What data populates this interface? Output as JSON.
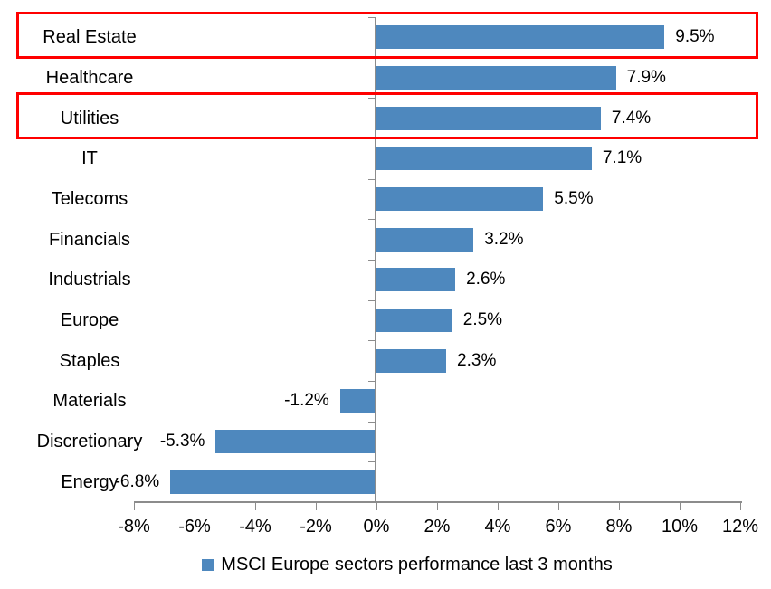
{
  "chart_data": {
    "type": "bar",
    "orientation": "horizontal",
    "title": "",
    "categories": [
      "Real Estate",
      "Healthcare",
      "Utilities",
      "IT",
      "Telecoms",
      "Financials",
      "Industrials",
      "Europe",
      "Staples",
      "Materials",
      "Discretionary",
      "Energy"
    ],
    "values": [
      9.5,
      7.9,
      7.4,
      7.1,
      5.5,
      3.2,
      2.6,
      2.5,
      2.3,
      -1.2,
      -5.3,
      -6.8
    ],
    "data_labels": [
      "9.5%",
      "7.9%",
      "7.4%",
      "7.1%",
      "5.5%",
      "3.2%",
      "2.6%",
      "2.5%",
      "2.3%",
      "-1.2%",
      "-5.3%",
      "-6.8%"
    ],
    "x_axis": {
      "min": -8,
      "max": 12,
      "tick_values": [
        -8,
        -6,
        -4,
        -2,
        0,
        2,
        4,
        6,
        8,
        10,
        12
      ],
      "tick_labels": [
        "-8%",
        "-6%",
        "-4%",
        "-2%",
        "0%",
        "2%",
        "4%",
        "6%",
        "8%",
        "10%",
        "12%"
      ]
    },
    "grid": false,
    "legend": {
      "position": "bottom",
      "label": "MSCI Europe sectors performance last 3 months"
    },
    "colors": {
      "bar": "#4e88be",
      "axis": "#8c8c8c",
      "text": "#000000",
      "highlight": "#ff0000",
      "background": "#ffffff"
    },
    "highlighted_categories": [
      "Real Estate",
      "Utilities"
    ]
  }
}
